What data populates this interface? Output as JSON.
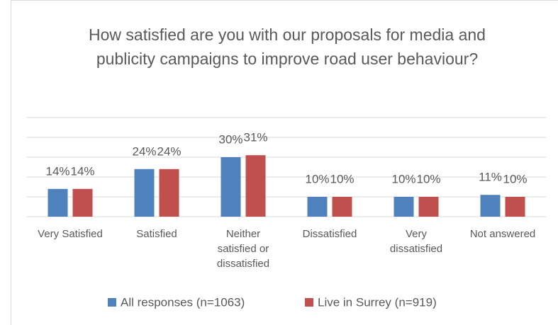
{
  "chart_data": {
    "type": "bar",
    "title": "How satisfied are you with our proposals for media and publicity campaigns to improve road user behaviour?",
    "categories": [
      "Very Satisfied",
      "Satisfied",
      "Neither\nsatisfied or\ndissatisfied",
      "Dissatisfied",
      "Very\ndissatisfied",
      "Not answered"
    ],
    "series": [
      {
        "name": "All responses (n=1063)",
        "color": "#4f81bd",
        "values": [
          14,
          24,
          30,
          10,
          10,
          11
        ],
        "value_labels": [
          "14%",
          "24%",
          "30%",
          "10%",
          "10%",
          "11%"
        ]
      },
      {
        "name": "Live in Surrey (n=919)",
        "color": "#c0504d",
        "values": [
          14,
          24,
          31,
          10,
          10,
          10
        ],
        "value_labels": [
          "14%",
          "24%",
          "31%",
          "10%",
          "10%",
          "10%"
        ]
      }
    ],
    "ylim": [
      0,
      50
    ],
    "yticks": [
      0,
      10,
      20,
      30,
      40,
      50
    ],
    "grid": true
  }
}
